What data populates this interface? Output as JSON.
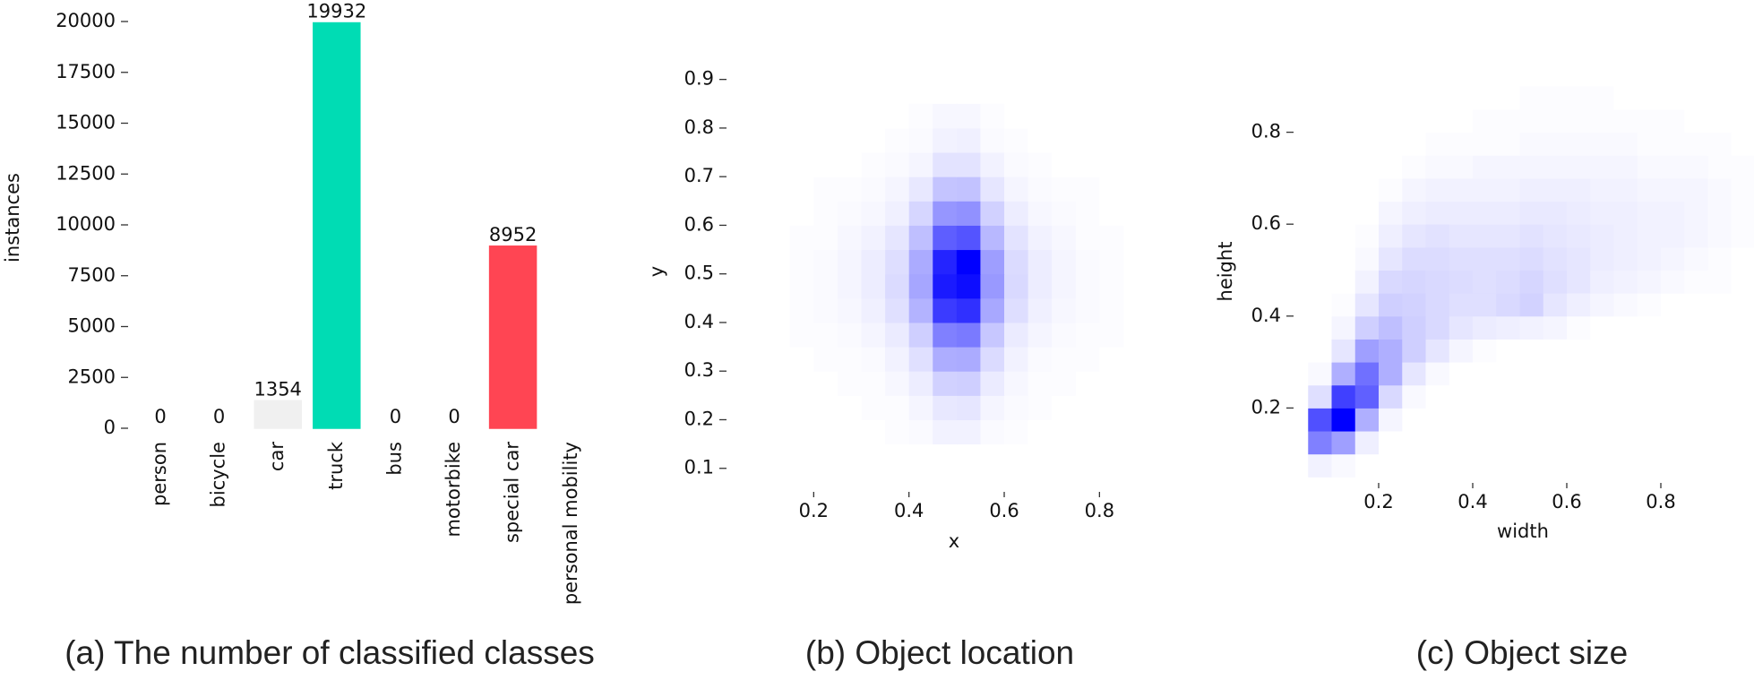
{
  "chart_data": [
    {
      "type": "bar",
      "caption": "(a) The number of classified classes",
      "ylabel": "instances",
      "categories": [
        "person",
        "bicycle",
        "car",
        "truck",
        "bus",
        "motorbike",
        "special car",
        "personal mobility"
      ],
      "values": [
        0,
        0,
        1354,
        19932,
        0,
        0,
        8952,
        null
      ],
      "colors": [
        "#3b3bb0",
        "#4fb3d9",
        "#f0f0f0",
        "#00dcb4",
        "#2d2d8a",
        "#d67fd6",
        "#ff4553",
        null
      ],
      "ylim": [
        0,
        20000
      ],
      "yticks": [
        0,
        2500,
        5000,
        7500,
        10000,
        12500,
        15000,
        17500,
        20000
      ]
    },
    {
      "type": "hist2d",
      "caption": "(b) Object location",
      "xlabel": "x",
      "ylabel": "y",
      "color": "#0000ff",
      "xlim": [
        0,
        1
      ],
      "ylim": [
        0,
        1
      ],
      "xticks": [
        0.2,
        0.4,
        0.6,
        0.8
      ],
      "yticks": [
        0.1,
        0.2,
        0.3,
        0.4,
        0.5,
        0.6,
        0.7,
        0.8,
        0.9
      ],
      "xbins": [
        0.15,
        0.2,
        0.25,
        0.3,
        0.35,
        0.4,
        0.45,
        0.5,
        0.55,
        0.6,
        0.65,
        0.7,
        0.75,
        0.8,
        0.85
      ],
      "ybins": [
        0.15,
        0.2,
        0.25,
        0.3,
        0.35,
        0.4,
        0.45,
        0.5,
        0.55,
        0.6,
        0.65,
        0.7,
        0.75,
        0.8,
        0.85
      ],
      "values": [
        [
          0,
          0,
          0,
          0,
          1,
          2,
          5,
          5,
          2,
          1,
          0,
          0,
          0,
          0
        ],
        [
          0,
          0,
          0,
          1,
          1,
          4,
          9,
          10,
          4,
          2,
          1,
          0,
          0,
          0
        ],
        [
          0,
          0,
          1,
          1,
          3,
          7,
          18,
          19,
          8,
          3,
          1,
          1,
          0,
          0
        ],
        [
          0,
          1,
          1,
          2,
          5,
          12,
          32,
          33,
          14,
          5,
          2,
          1,
          1,
          0
        ],
        [
          1,
          1,
          2,
          4,
          8,
          19,
          50,
          52,
          22,
          8,
          4,
          2,
          1,
          1
        ],
        [
          1,
          2,
          3,
          6,
          12,
          30,
          77,
          81,
          34,
          13,
          6,
          3,
          2,
          1
        ],
        [
          1,
          2,
          4,
          7,
          14,
          35,
          90,
          95,
          40,
          15,
          7,
          4,
          2,
          1
        ],
        [
          1,
          2,
          4,
          7,
          13,
          33,
          86,
          100,
          38,
          14,
          7,
          4,
          2,
          1
        ],
        [
          1,
          1,
          3,
          5,
          10,
          25,
          63,
          67,
          28,
          11,
          5,
          3,
          1,
          1
        ],
        [
          0,
          1,
          2,
          3,
          6,
          16,
          41,
          43,
          18,
          7,
          3,
          2,
          1,
          0
        ],
        [
          0,
          1,
          1,
          2,
          4,
          9,
          23,
          24,
          10,
          4,
          2,
          1,
          1,
          0
        ],
        [
          0,
          0,
          0,
          1,
          2,
          4,
          11,
          11,
          5,
          2,
          1,
          0,
          0,
          0
        ],
        [
          0,
          0,
          0,
          0,
          1,
          2,
          5,
          6,
          2,
          1,
          0,
          0,
          0,
          0
        ],
        [
          0,
          0,
          0,
          0,
          0,
          1,
          3,
          3,
          1,
          0,
          0,
          0,
          0,
          0
        ]
      ]
    },
    {
      "type": "hist2d",
      "caption": "(c) Object size",
      "xlabel": "width",
      "ylabel": "height",
      "color": "#0000ff",
      "xlim": [
        0,
        1
      ],
      "ylim": [
        0,
        1
      ],
      "xticks": [
        0.2,
        0.4,
        0.6,
        0.8
      ],
      "yticks": [
        0.2,
        0.4,
        0.6,
        0.8
      ],
      "xbins": [
        0,
        0.05,
        0.1,
        0.15,
        0.2,
        0.25,
        0.3,
        0.35,
        0.4,
        0.45,
        0.5,
        0.55,
        0.6,
        0.65,
        0.7,
        0.75,
        0.8,
        0.85,
        0.9,
        0.95,
        1.0
      ],
      "ybins": [
        0.05,
        0.1,
        0.15,
        0.2,
        0.25,
        0.3,
        0.35,
        0.4,
        0.45,
        0.5,
        0.55,
        0.6,
        0.65,
        0.7,
        0.75,
        0.8,
        0.85,
        0.9
      ],
      "values": [
        [
          0,
          4,
          2,
          0,
          0,
          0,
          0,
          0,
          0,
          0,
          0,
          0,
          0,
          0,
          0,
          0,
          0,
          0,
          0,
          0
        ],
        [
          0,
          40,
          30,
          5,
          0,
          0,
          0,
          0,
          0,
          0,
          0,
          0,
          0,
          0,
          0,
          0,
          0,
          0,
          0,
          0
        ],
        [
          0,
          55,
          80,
          25,
          3,
          0,
          0,
          0,
          0,
          0,
          0,
          0,
          0,
          0,
          0,
          0,
          0,
          0,
          0,
          0
        ],
        [
          0,
          10,
          60,
          50,
          12,
          2,
          0,
          0,
          0,
          0,
          0,
          0,
          0,
          0,
          0,
          0,
          0,
          0,
          0,
          0
        ],
        [
          0,
          2,
          25,
          45,
          25,
          8,
          2,
          0,
          0,
          0,
          0,
          0,
          0,
          0,
          0,
          0,
          0,
          0,
          0,
          0
        ],
        [
          0,
          0,
          8,
          30,
          25,
          15,
          8,
          3,
          1,
          0,
          0,
          0,
          0,
          0,
          0,
          0,
          0,
          0,
          0,
          0
        ],
        [
          0,
          0,
          3,
          15,
          20,
          15,
          12,
          8,
          6,
          5,
          4,
          3,
          1,
          0,
          0,
          0,
          0,
          0,
          0,
          0
        ],
        [
          0,
          0,
          1,
          8,
          15,
          14,
          12,
          10,
          10,
          12,
          14,
          8,
          5,
          3,
          2,
          1,
          0,
          0,
          0,
          0
        ],
        [
          0,
          0,
          0,
          4,
          12,
          13,
          12,
          11,
          10,
          11,
          13,
          10,
          8,
          5,
          4,
          3,
          2,
          1,
          1,
          0
        ],
        [
          0,
          0,
          0,
          2,
          8,
          11,
          11,
          10,
          10,
          10,
          11,
          9,
          8,
          6,
          5,
          4,
          3,
          2,
          1,
          0
        ],
        [
          0,
          0,
          0,
          1,
          5,
          8,
          9,
          8,
          8,
          8,
          9,
          8,
          7,
          6,
          5,
          4,
          4,
          3,
          2,
          1
        ],
        [
          0,
          0,
          0,
          0,
          3,
          5,
          6,
          6,
          6,
          6,
          7,
          7,
          6,
          5,
          5,
          4,
          4,
          3,
          2,
          1
        ],
        [
          0,
          0,
          0,
          0,
          1,
          3,
          4,
          4,
          4,
          4,
          5,
          5,
          5,
          4,
          4,
          3,
          3,
          3,
          2,
          1
        ],
        [
          0,
          0,
          0,
          0,
          0,
          1,
          2,
          2,
          3,
          3,
          3,
          3,
          3,
          3,
          3,
          2,
          2,
          2,
          1,
          1
        ],
        [
          0,
          0,
          0,
          0,
          0,
          0,
          1,
          1,
          1,
          1,
          2,
          2,
          2,
          2,
          2,
          1,
          1,
          1,
          1,
          0
        ],
        [
          0,
          0,
          0,
          0,
          0,
          0,
          0,
          0,
          1,
          1,
          1,
          1,
          1,
          1,
          1,
          1,
          1,
          0,
          0,
          0
        ],
        [
          0,
          0,
          0,
          0,
          0,
          0,
          0,
          0,
          0,
          0,
          1,
          1,
          1,
          1,
          0,
          0,
          0,
          0,
          0,
          0
        ]
      ]
    }
  ]
}
